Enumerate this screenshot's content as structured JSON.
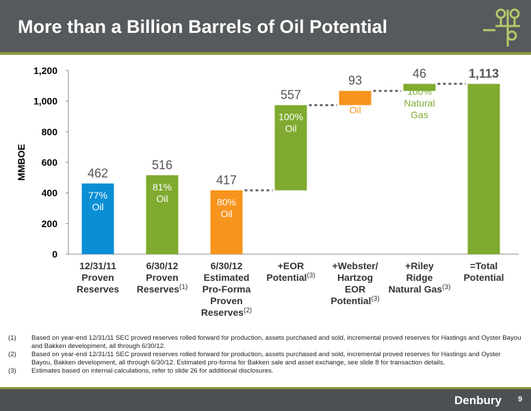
{
  "slide": {
    "title": "More than a Billion Barrels of Oil Potential",
    "brand": "Denbury",
    "page_number": "9",
    "logo_icon": "oil-well-valve-icon"
  },
  "colors": {
    "header": "#565a5c",
    "accent_green": "#8a9a3c",
    "bar_blue": "#0a8fd5",
    "bar_green": "#7faa2f",
    "bar_orange": "#f7941d"
  },
  "footnotes": [
    {
      "num": "(1)",
      "text": "Based on year-end 12/31/11 SEC proved reserves rolled forward for production, assets purchased and sold, incremental proved reserves for Hastings and Oyster Bayou and Bakken development, all through 6/30/12."
    },
    {
      "num": "(2)",
      "text": "Based on year-end 12/31/11 SEC proved reserves rolled forward for production, assets purchased and sold, incremental proved reserves for Hastings and Oyster Bayou, Bakken development, all through 6/30/12.  Estimated pro-forma for Bakken sale and asset exchange, see slide 8 for transaction details."
    },
    {
      "num": "(3)",
      "text": "Estimates based on internal calculations, refer to slide 26 for additional disclosures."
    }
  ],
  "chart_data": {
    "type": "bar",
    "subtype": "waterfall",
    "ylabel": "MMBOE",
    "ylim": [
      0,
      1200
    ],
    "yticks": [
      "0",
      "200",
      "400",
      "600",
      "800",
      "1,000",
      "1,200"
    ],
    "grid": false,
    "bars": [
      {
        "label": [
          "12/31/11",
          "Proven",
          "Reserves"
        ],
        "sup": [],
        "base": 0,
        "value": 462,
        "value_label": "462",
        "color": "#0a8fd5",
        "pct": [
          "77%",
          "Oil"
        ],
        "pct_color": "#ffffff"
      },
      {
        "label": [
          "6/30/12",
          "Proven",
          "Reserves"
        ],
        "sup": [
          "",
          "",
          "(1)"
        ],
        "base": 0,
        "value": 516,
        "value_label": "516",
        "color": "#7faa2f",
        "pct": [
          "81%",
          "Oil"
        ],
        "pct_color": "#ffffff"
      },
      {
        "label": [
          "6/30/12",
          "Estimated",
          "Pro-Forma",
          "Proven",
          "Reserves"
        ],
        "sup": [
          "",
          "",
          "",
          "",
          "(2)"
        ],
        "base": 0,
        "value": 417,
        "value_label": "417",
        "color": "#f7941d",
        "pct": [
          "80%",
          "Oil"
        ],
        "pct_color": "#ffffff"
      },
      {
        "label": [
          "+EOR",
          "Potential"
        ],
        "sup": [
          "",
          "(3)"
        ],
        "base": 417,
        "value": 557,
        "value_label": "557",
        "color": "#7faa2f",
        "pct": [
          "100%",
          "Oil"
        ],
        "pct_color": "#ffffff"
      },
      {
        "label": [
          "+Webster/",
          "Hartzog",
          "EOR",
          "Potential"
        ],
        "sup": [
          "",
          "",
          "",
          "(3)"
        ],
        "base": 974,
        "value": 93,
        "value_label": "93",
        "color": "#f7941d",
        "pct": [
          "100%",
          "Oil"
        ],
        "pct_color": "#f7941d"
      },
      {
        "label": [
          "+Riley",
          "Ridge",
          "Natural Gas"
        ],
        "sup": [
          "",
          "",
          "(3)"
        ],
        "base": 1067,
        "value": 46,
        "value_label": "46",
        "color": "#7faa2f",
        "pct": [
          "100%",
          "Natural",
          "Gas"
        ],
        "pct_color": "#7faa2f"
      },
      {
        "label": [
          "=Total",
          "Potential"
        ],
        "sup": [],
        "base": 0,
        "value": 1113,
        "value_label": "1,113",
        "color": "#7faa2f",
        "pct": [],
        "pct_color": "#ffffff",
        "bold_value": true
      }
    ]
  }
}
